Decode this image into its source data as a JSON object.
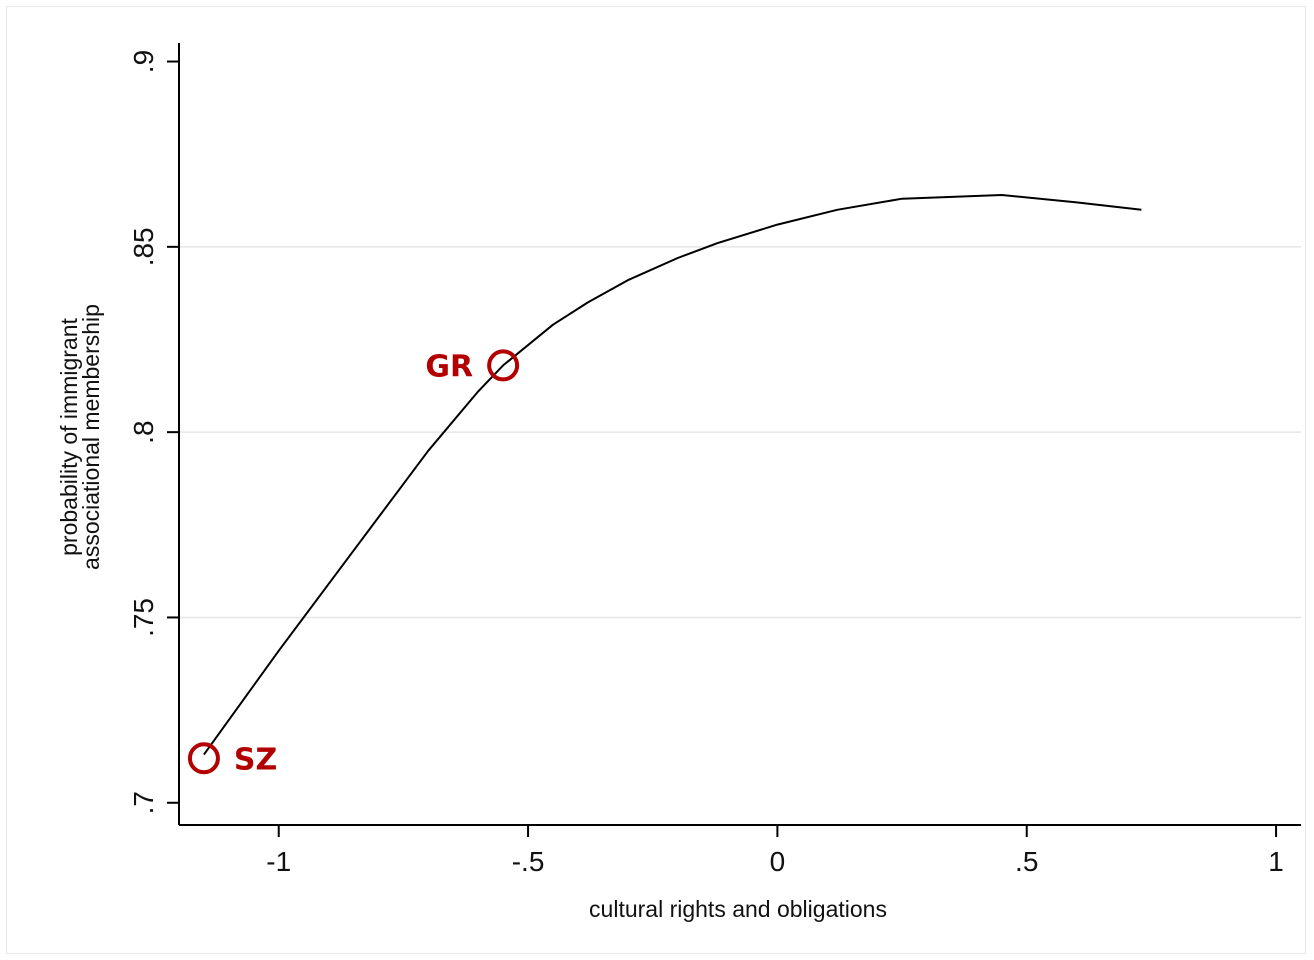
{
  "chart_data": {
    "type": "line",
    "title": "",
    "xlabel": "cultural rights and obligations",
    "ylabel_lines": [
      "probability of immigrant",
      "associational membership"
    ],
    "xlim": [
      -1.2,
      1.05
    ],
    "ylim": [
      0.694,
      0.905
    ],
    "x_ticks": [
      -1,
      -0.5,
      0,
      0.5,
      1
    ],
    "x_tick_labels": [
      "-1",
      "-.5",
      "0",
      ".5",
      "1"
    ],
    "y_ticks": [
      0.7,
      0.75,
      0.8,
      0.85,
      0.9
    ],
    "y_tick_labels": [
      ".7",
      ".75",
      ".8",
      ".85",
      ".9"
    ],
    "grid": "horizontal",
    "series": [
      {
        "x": [
          -1.15,
          -1.0,
          -0.85,
          -0.7,
          -0.6,
          -0.55,
          -0.45,
          -0.38,
          -0.3,
          -0.2,
          -0.12,
          0.0,
          0.12,
          0.25,
          0.45,
          0.6,
          0.73
        ],
        "y": [
          0.713,
          0.741,
          0.768,
          0.795,
          0.811,
          0.818,
          0.829,
          0.835,
          0.841,
          0.847,
          0.851,
          0.856,
          0.86,
          0.863,
          0.864,
          0.862,
          0.86
        ]
      }
    ],
    "annotations": [
      {
        "label": "SZ",
        "x": -1.15,
        "y": 0.712,
        "text_side": "right"
      },
      {
        "label": "GR",
        "x": -0.55,
        "y": 0.818,
        "text_side": "left"
      }
    ],
    "colors": {
      "line": "#000000",
      "annotation": "#b30000",
      "grid": "#e6e6e6"
    }
  }
}
